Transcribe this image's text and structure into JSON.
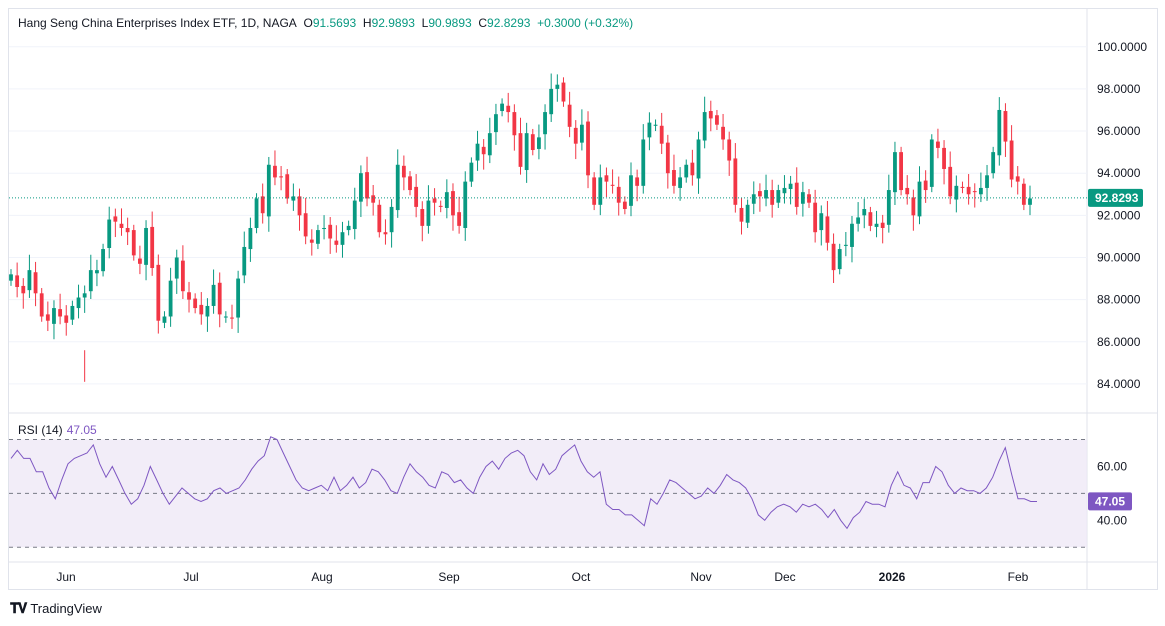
{
  "legend": {
    "symbol": "Hang Seng China Enterprises Index ETF, 1D, NAGA",
    "o_label": "O",
    "o_value": "91.5693",
    "h_label": "H",
    "h_value": "92.9893",
    "l_label": "L",
    "l_value": "90.9893",
    "c_label": "C",
    "c_value": "92.8293",
    "change": "+0.3000 (+0.32%)"
  },
  "rsi": {
    "label": "RSI (14)",
    "value": "47.05"
  },
  "footer": {
    "brand": "TradingView"
  },
  "colors": {
    "up": "#089981",
    "down": "#f23645",
    "rsi": "#7e57c2",
    "rsi_band": "#ede7f6",
    "last_price": "#089981"
  },
  "chart_data": {
    "type": "candlestick",
    "price_axis": {
      "min": 83.0,
      "max": 100.7,
      "ticks": [
        "100.0000",
        "98.0000",
        "96.0000",
        "94.0000",
        "92.0000",
        "90.0000",
        "88.0000",
        "86.0000",
        "84.0000"
      ],
      "last_price_label": "92.8293"
    },
    "rsi_axis": {
      "min": 26,
      "max": 78,
      "ticks": [
        "60.00",
        "40.00"
      ],
      "last_value_label": "47.05",
      "band_upper": 70,
      "band_middle": 50,
      "band_lower": 30
    },
    "time_axis": [
      "Jun",
      "Jul",
      "Aug",
      "Sep",
      "Oct",
      "Nov",
      "Dec",
      "2026",
      "Feb"
    ],
    "closes": [
      89.2,
      88.6,
      88.3,
      89.4,
      88.3,
      87.2,
      87.0,
      87.6,
      87.2,
      86.9,
      87.7,
      88.1,
      88.3,
      89.4,
      89.4,
      90.4,
      91.8,
      91.7,
      91.4,
      91.2,
      90.1,
      89.7,
      91.4,
      89.5,
      87.0,
      87.2,
      88.9,
      90.0,
      88.4,
      88.0,
      87.6,
      87.3,
      87.7,
      88.7,
      87.3,
      87.2,
      87.1,
      89.0,
      90.5,
      91.4,
      92.8,
      92.1,
      94.4,
      93.8,
      93.8,
      92.8,
      92.9,
      92.0,
      91.0,
      90.7,
      91.3,
      91.4,
      90.9,
      90.6,
      91.2,
      91.5,
      92.7,
      94.0,
      92.8,
      92.6,
      91.2,
      91.1,
      92.4,
      94.4,
      93.8,
      93.2,
      92.4,
      91.5,
      92.7,
      92.6,
      92.4,
      93.1,
      92.0,
      91.5,
      93.6,
      94.5,
      95.4,
      94.9,
      95.9,
      96.8,
      97.3,
      96.9,
      95.8,
      94.3,
      95.9,
      95.1,
      95.7,
      96.9,
      98.0,
      98.2,
      97.4,
      96.2,
      95.4,
      96.3,
      93.9,
      92.5,
      93.8,
      93.6,
      93.4,
      92.6,
      92.3,
      93.9,
      93.4,
      95.6,
      96.4,
      96.3,
      95.4,
      94.0,
      93.4,
      93.8,
      94.4,
      93.9,
      95.6,
      96.9,
      96.6,
      96.3,
      95.6,
      94.6,
      92.5,
      91.7,
      92.5,
      93.0,
      92.9,
      93.2,
      92.5,
      93.2,
      93.3,
      93.5,
      92.4,
      93.1,
      92.6,
      91.2,
      92.1,
      90.7,
      89.4,
      90.4,
      90.6,
      91.6,
      91.9,
      92.3,
      91.5,
      91.6,
      91.4,
      93.2,
      95.0,
      93.2,
      93.0,
      92.0,
      93.6,
      93.2,
      95.6,
      95.2,
      94.2,
      92.9,
      93.4,
      93.3,
      93.0,
      93.1,
      93.3,
      93.9,
      95.0,
      97.0,
      95.5,
      93.7,
      93.6,
      92.5,
      92.8
    ],
    "rsi_values": [
      63,
      66,
      63,
      63,
      58,
      58,
      52,
      48,
      55,
      61,
      63,
      64,
      65,
      68,
      61,
      56,
      60,
      55,
      50,
      46,
      48,
      53,
      60,
      55,
      50,
      46,
      49,
      52,
      50,
      48,
      47,
      48,
      51,
      52,
      50,
      51,
      52,
      55,
      59,
      62,
      64,
      71,
      70,
      65,
      60,
      55,
      52,
      51,
      52,
      53,
      51,
      56,
      51,
      53,
      56,
      52,
      54,
      59,
      58,
      55,
      51,
      50,
      56,
      61,
      58,
      56,
      53,
      52,
      58,
      57,
      54,
      55,
      52,
      50,
      56,
      60,
      62,
      59,
      63,
      65,
      66,
      64,
      58,
      55,
      61,
      57,
      59,
      64,
      66,
      68,
      62,
      58,
      56,
      58,
      46,
      44,
      44,
      42,
      42,
      40,
      38,
      48,
      46,
      50,
      55,
      54,
      52,
      50,
      48,
      49,
      52,
      50,
      53,
      57,
      55,
      54,
      52,
      48,
      42,
      40,
      43,
      45,
      46,
      45,
      43,
      46,
      45,
      46,
      44,
      41,
      44,
      40,
      37,
      41,
      43,
      47,
      46,
      46,
      45,
      53,
      58,
      53,
      52,
      48,
      54,
      54,
      60,
      58,
      53,
      50,
      52,
      51,
      51,
      50,
      52,
      56,
      62,
      67,
      57,
      48,
      48,
      47,
      47
    ]
  }
}
